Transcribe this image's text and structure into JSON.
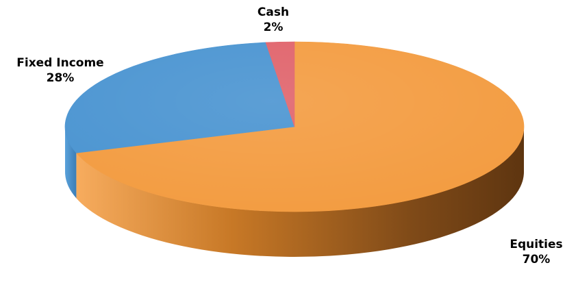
{
  "chart_data": {
    "type": "pie",
    "style": "3d",
    "title": "",
    "categories": [
      "Equities",
      "Fixed Income",
      "Cash"
    ],
    "values": [
      70,
      28,
      2
    ],
    "value_labels": [
      "70%",
      "28%",
      "2%"
    ],
    "colors": [
      "#f39c41",
      "#4a94d1",
      "#e0636b"
    ],
    "legend": "none",
    "label_placement": "outside"
  }
}
